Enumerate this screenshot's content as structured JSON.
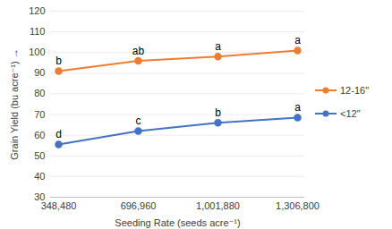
{
  "chart_data": {
    "type": "line",
    "x_label": "Seeding Rate (seeds acre⁻¹)",
    "y_label": "Grain Yield (bu acre⁻¹)",
    "categories": [
      "348,480",
      "696,960",
      "1,001,880",
      "1,306,800"
    ],
    "series": [
      {
        "name": "12-16\"",
        "color": "#ed7d31",
        "values": [
          91,
          96,
          98,
          101
        ],
        "annotations": [
          "b",
          "ab",
          "a",
          "a"
        ]
      },
      {
        "name": "<12\"",
        "color": "#4472c4",
        "values": [
          55.5,
          62,
          66,
          68.5
        ],
        "annotations": [
          "d",
          "c",
          "b",
          "a"
        ]
      }
    ],
    "ylim": [
      30,
      120
    ],
    "yticks": [
      30,
      40,
      50,
      60,
      70,
      80,
      90,
      100,
      110,
      120
    ],
    "grid": true,
    "legend": "right",
    "marker": "circle"
  }
}
